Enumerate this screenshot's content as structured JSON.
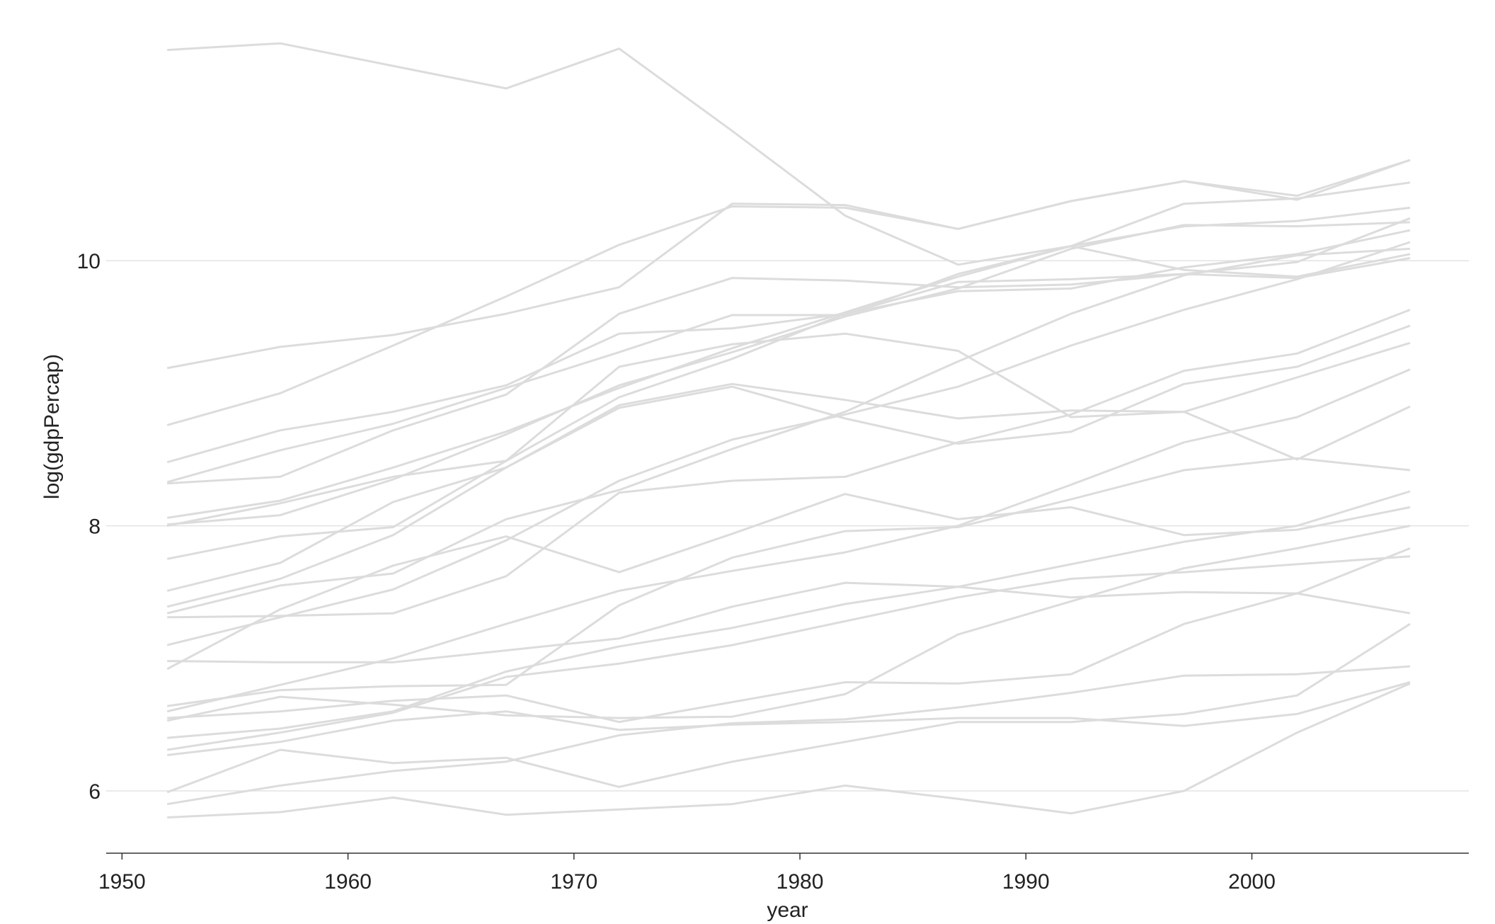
{
  "chart_data": {
    "type": "line",
    "title": "",
    "xlabel": "year",
    "ylabel": "log(gdpPercap)",
    "xlim": [
      1949.3,
      2009.6
    ],
    "ylim": [
      5.53,
      11.7
    ],
    "x_ticks": [
      1950,
      1960,
      1970,
      1980,
      1990,
      2000
    ],
    "y_ticks": [
      6,
      8,
      10
    ],
    "x_tick_labels": [
      "1950",
      "1960",
      "1970",
      "1980",
      "1990",
      "2000"
    ],
    "y_tick_labels": [
      "6",
      "8",
      "10"
    ],
    "grid": "horizontal-major",
    "legend": "none",
    "line_color": "#dcdcdc",
    "grid_color": "#e3e3e3",
    "axis_color": "#333333",
    "x": [
      1952,
      1957,
      1962,
      1967,
      1972,
      1977,
      1982,
      1987,
      1992,
      1997,
      2002,
      2007
    ],
    "series": [
      {
        "values": [
          11.59,
          11.64,
          11.47,
          11.3,
          11.6,
          10.98,
          10.34,
          9.97,
          10.11,
          9.93,
          9.88,
          10.05
        ]
      },
      {
        "values": [
          9.19,
          9.35,
          9.44,
          9.6,
          9.8,
          10.43,
          10.42,
          10.24,
          10.45,
          10.6,
          10.46,
          10.76
        ]
      },
      {
        "values": [
          8.76,
          9.0,
          9.36,
          9.73,
          10.12,
          10.41,
          10.4,
          10.24,
          10.45,
          10.6,
          10.49,
          10.76
        ]
      },
      {
        "values": [
          8.48,
          8.72,
          8.86,
          9.06,
          9.45,
          9.49,
          9.6,
          9.84,
          9.86,
          9.9,
          9.87,
          10.02
        ]
      },
      {
        "values": [
          8.33,
          8.57,
          8.77,
          9.04,
          9.31,
          9.59,
          9.59,
          9.9,
          10.11,
          10.43,
          10.47,
          10.59
        ]
      },
      {
        "values": [
          8.32,
          8.37,
          8.72,
          8.99,
          9.6,
          9.87,
          9.85,
          9.8,
          9.82,
          9.9,
          9.99,
          10.32
        ]
      },
      {
        "values": [
          8.06,
          8.19,
          8.44,
          8.71,
          9.04,
          9.34,
          9.61,
          9.88,
          10.11,
          10.26,
          10.3,
          10.4
        ]
      },
      {
        "values": [
          8.01,
          8.08,
          8.35,
          8.69,
          9.06,
          9.31,
          9.58,
          9.79,
          10.09,
          10.27,
          10.26,
          10.29
        ]
      },
      {
        "values": [
          8.0,
          8.17,
          8.37,
          8.49,
          8.97,
          9.26,
          9.6,
          9.77,
          9.79,
          9.95,
          10.05,
          10.23
        ]
      },
      {
        "values": [
          7.75,
          7.92,
          7.99,
          8.49,
          9.2,
          9.37,
          9.45,
          9.32,
          8.82,
          8.86,
          9.12,
          9.38
        ]
      },
      {
        "values": [
          7.51,
          7.72,
          8.18,
          8.44,
          8.89,
          9.05,
          8.81,
          8.62,
          8.71,
          9.07,
          9.2,
          9.51
        ]
      },
      {
        "values": [
          7.39,
          7.6,
          7.93,
          8.44,
          8.91,
          9.07,
          8.95,
          8.81,
          8.87,
          8.86,
          8.5,
          8.9
        ]
      },
      {
        "values": [
          7.34,
          7.55,
          7.64,
          8.05,
          8.27,
          8.58,
          8.86,
          9.24,
          9.6,
          9.89,
          10.04,
          10.09
        ]
      },
      {
        "values": [
          7.31,
          7.32,
          7.34,
          7.62,
          8.25,
          8.34,
          8.37,
          8.63,
          8.84,
          9.17,
          9.3,
          9.63
        ]
      },
      {
        "values": [
          7.1,
          7.31,
          7.52,
          7.89,
          8.34,
          8.65,
          8.84,
          9.05,
          9.36,
          9.63,
          9.86,
          10.14
        ]
      },
      {
        "values": [
          6.98,
          6.97,
          6.97,
          7.06,
          7.15,
          7.39,
          7.57,
          7.54,
          7.46,
          7.5,
          7.49,
          7.34
        ]
      },
      {
        "values": [
          6.92,
          7.37,
          7.7,
          7.92,
          7.65,
          7.94,
          8.24,
          8.05,
          8.14,
          7.93,
          7.97,
          8.14
        ]
      },
      {
        "values": [
          6.64,
          6.76,
          6.79,
          6.8,
          7.4,
          7.76,
          7.96,
          7.99,
          8.2,
          8.42,
          8.51,
          8.42
        ]
      },
      {
        "values": [
          6.6,
          6.8,
          7.0,
          7.26,
          7.51,
          7.66,
          7.8,
          8.0,
          8.31,
          8.63,
          8.82,
          9.18
        ]
      },
      {
        "values": [
          6.55,
          6.6,
          6.68,
          6.72,
          6.52,
          6.67,
          6.82,
          6.81,
          6.88,
          7.26,
          7.49,
          7.83
        ]
      },
      {
        "values": [
          6.53,
          6.71,
          6.65,
          6.57,
          6.55,
          6.56,
          6.73,
          7.18,
          7.43,
          7.68,
          7.83,
          8.0
        ]
      },
      {
        "values": [
          6.4,
          6.47,
          6.6,
          6.9,
          7.09,
          7.23,
          7.41,
          7.54,
          7.71,
          7.88,
          8.0,
          8.26
        ]
      },
      {
        "values": [
          6.31,
          6.44,
          6.59,
          6.86,
          6.96,
          7.1,
          7.28,
          7.46,
          7.6,
          7.65,
          7.71,
          7.77
        ]
      },
      {
        "values": [
          6.27,
          6.37,
          6.53,
          6.6,
          6.46,
          6.5,
          6.52,
          6.55,
          6.55,
          6.49,
          6.58,
          6.82
        ]
      },
      {
        "values": [
          5.99,
          6.31,
          6.21,
          6.25,
          6.03,
          6.22,
          6.37,
          6.52,
          6.52,
          6.58,
          6.72,
          7.26
        ]
      },
      {
        "values": [
          5.9,
          6.04,
          6.15,
          6.22,
          6.42,
          6.51,
          6.54,
          6.63,
          6.74,
          6.87,
          6.88,
          6.94
        ]
      },
      {
        "values": [
          5.8,
          5.84,
          5.95,
          5.82,
          5.86,
          5.9,
          6.04,
          5.94,
          5.83,
          6.0,
          6.44,
          6.81
        ]
      }
    ]
  }
}
